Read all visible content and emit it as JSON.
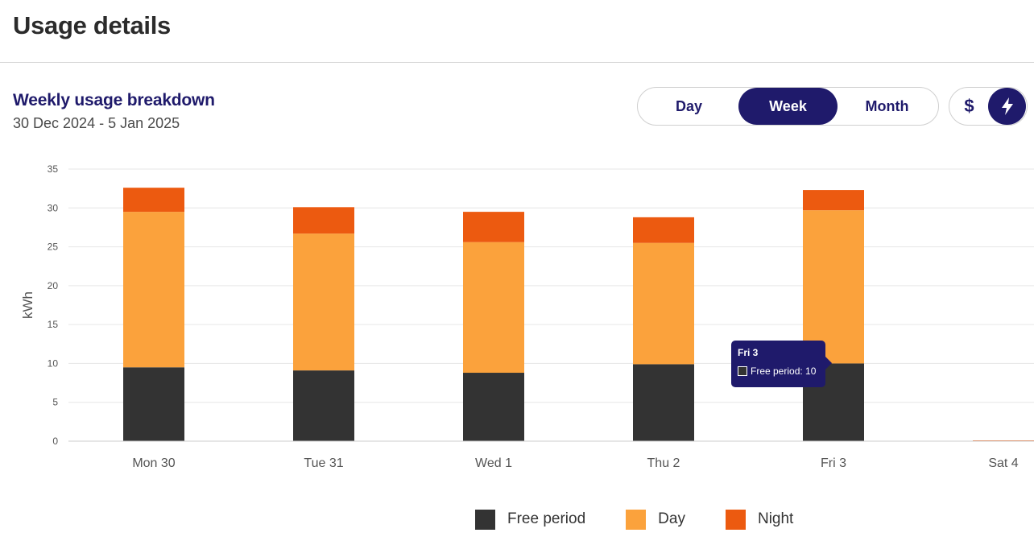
{
  "page": {
    "title": "Usage details"
  },
  "breakdown": {
    "title": "Weekly usage breakdown",
    "date_range": "30 Dec 2024 - 5 Jan 2025"
  },
  "period_toggle": {
    "options": [
      "Day",
      "Week",
      "Month"
    ],
    "selected": "Week"
  },
  "unit_toggle": {
    "options": [
      {
        "label": "$",
        "icon": "dollar-icon"
      },
      {
        "label": "",
        "icon": "lightning-icon"
      }
    ],
    "selected": "lightning-icon"
  },
  "colors": {
    "brand": "#1f1a6b",
    "free_period": "#333333",
    "day": "#fba23c",
    "night": "#ec5a10"
  },
  "tooltip": {
    "title": "Fri 3",
    "text": "Free period: 10"
  },
  "legend": [
    {
      "label": "Free period",
      "color": "#333333"
    },
    {
      "label": "Day",
      "color": "#fba23c"
    },
    {
      "label": "Night",
      "color": "#ec5a10"
    }
  ],
  "chart_data": {
    "type": "bar",
    "stacked": true,
    "title": "",
    "xlabel": "",
    "ylabel": "kWh",
    "ylim": [
      0,
      35
    ],
    "yticks": [
      0,
      5,
      10,
      15,
      20,
      25,
      30,
      35
    ],
    "grid": true,
    "legend_position": "bottom",
    "categories": [
      "Mon 30",
      "Tue 31",
      "Wed 1",
      "Thu 2",
      "Fri 3",
      "Sat 4"
    ],
    "series": [
      {
        "name": "Free period",
        "color": "#333333",
        "values": [
          9.5,
          9.1,
          8.8,
          9.9,
          10,
          0
        ]
      },
      {
        "name": "Day",
        "color": "#fba23c",
        "values": [
          20.0,
          17.6,
          16.8,
          15.6,
          19.7,
          0
        ]
      },
      {
        "name": "Night",
        "color": "#ec5a10",
        "values": [
          3.1,
          3.4,
          3.9,
          3.3,
          2.6,
          0.1
        ]
      }
    ]
  }
}
